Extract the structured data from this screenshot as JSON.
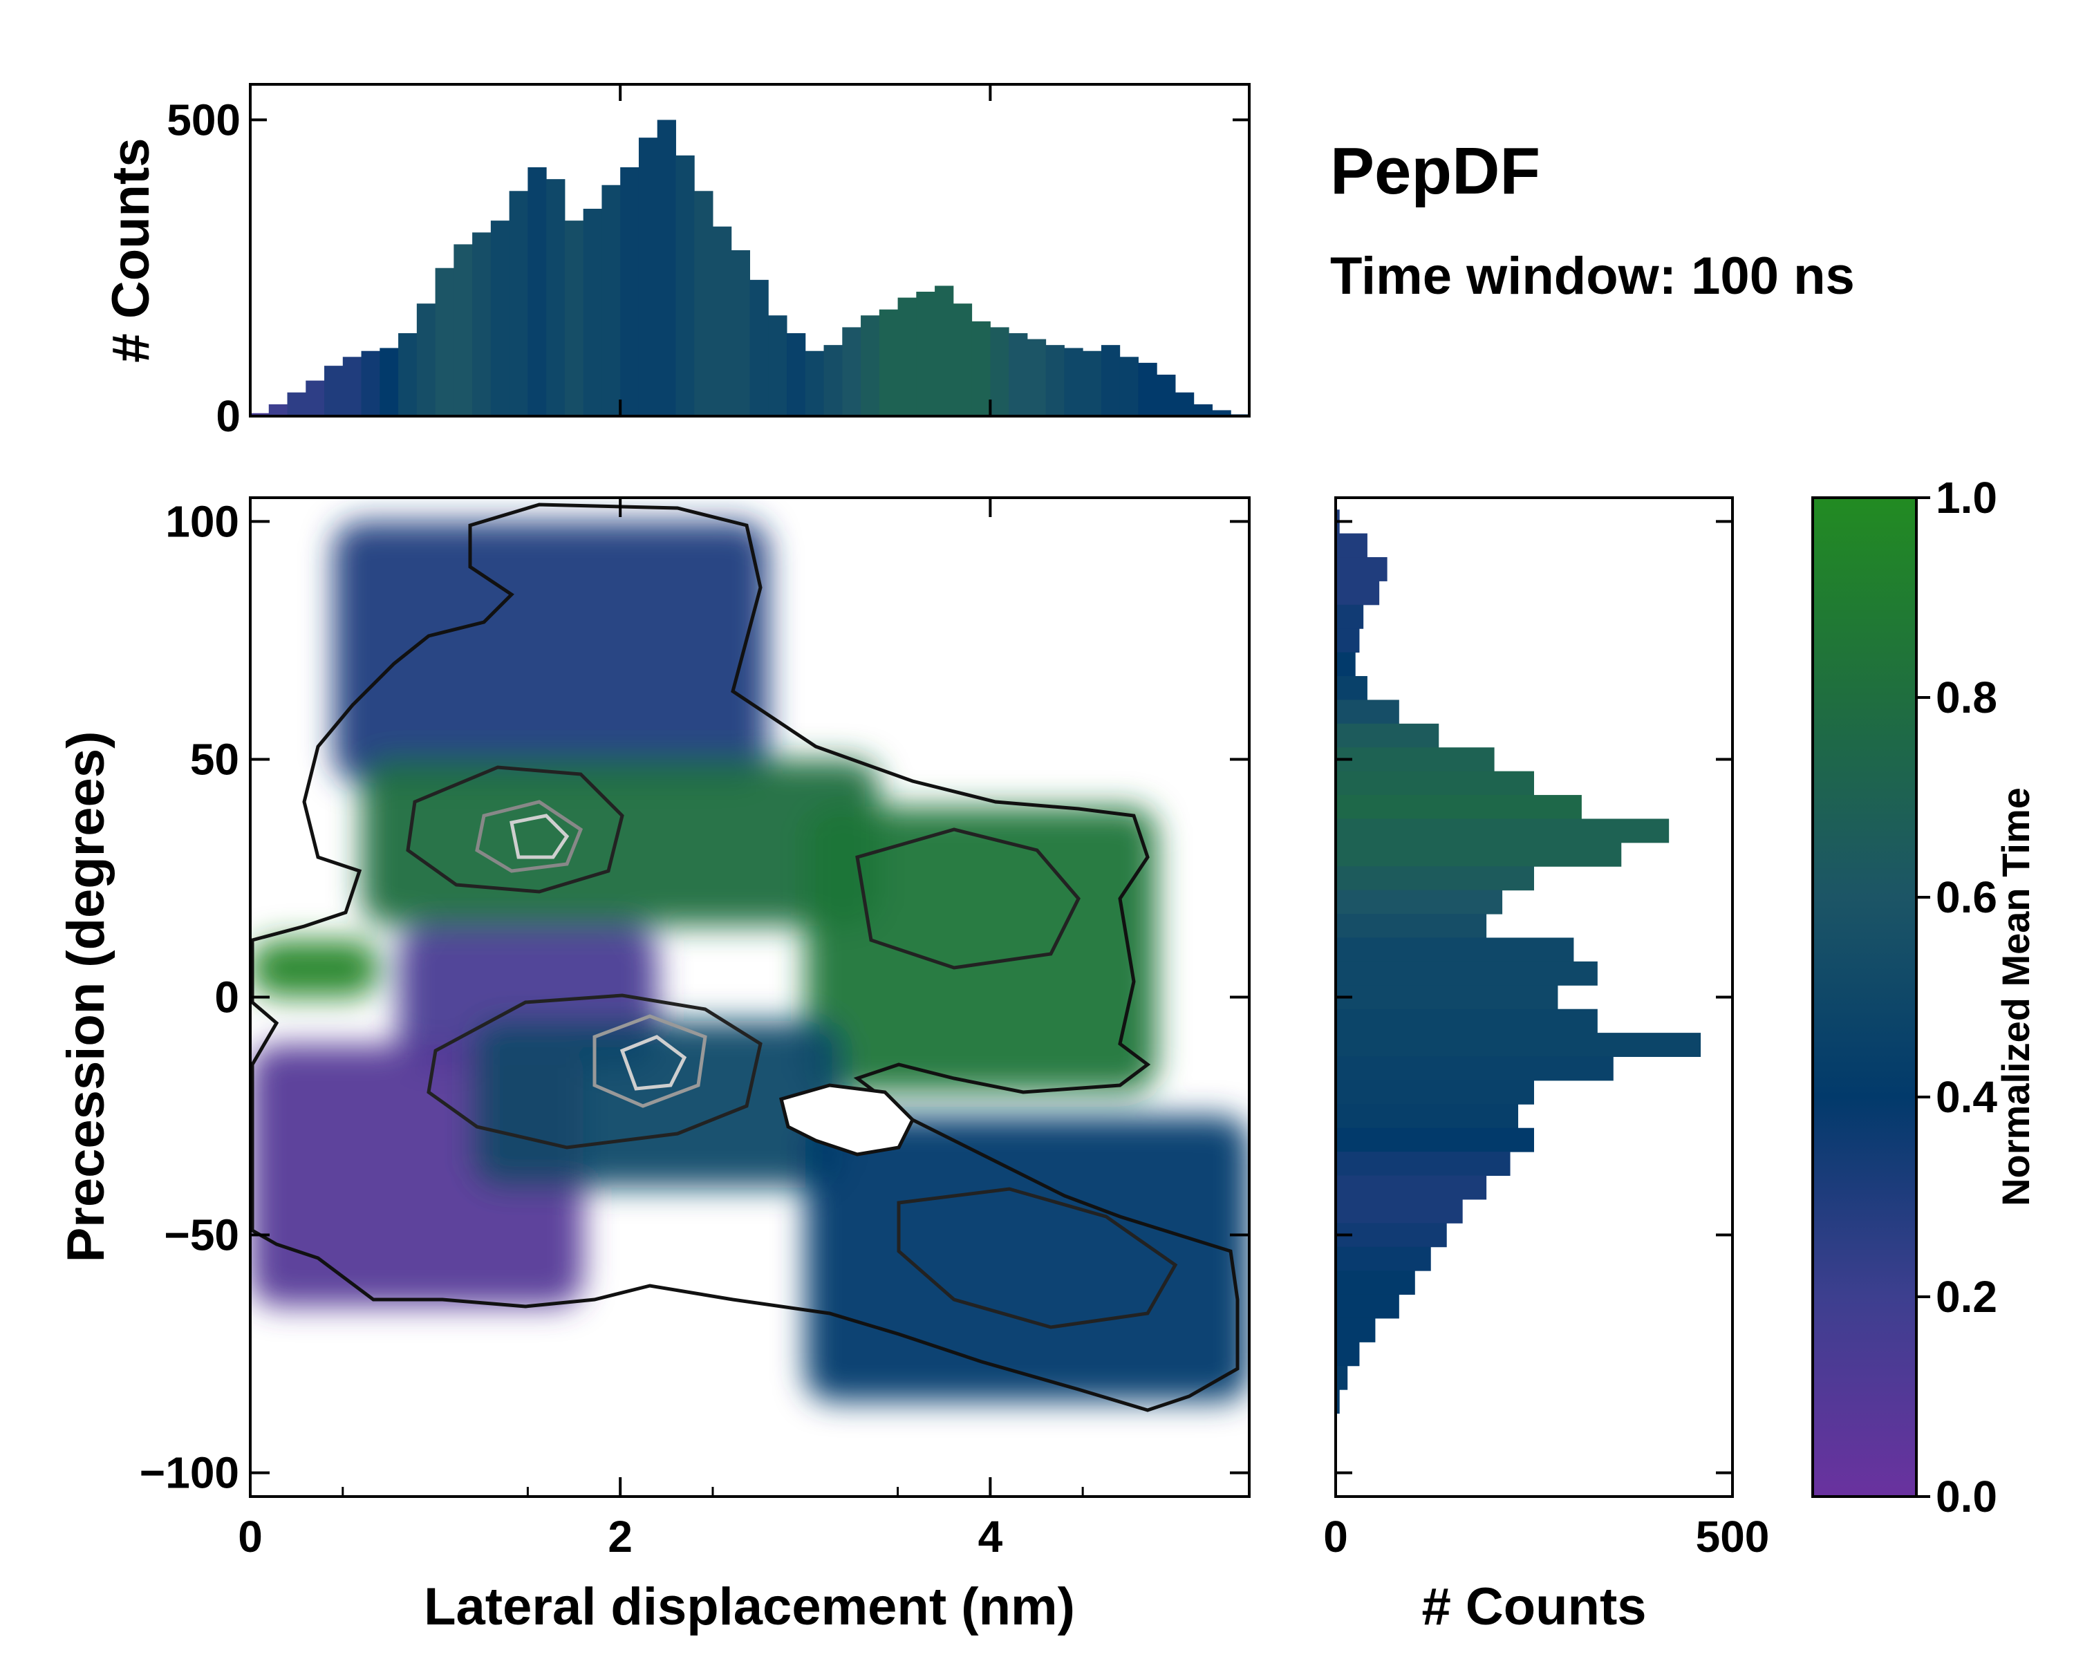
{
  "header": {
    "title": "PepDF",
    "subtitle": "Time window: 100 ns"
  },
  "chart_data": [
    {
      "type": "bar",
      "name": "top-marginal-histogram",
      "ylabel": "# Counts",
      "xlim": [
        0,
        5.4
      ],
      "ylim": [
        0,
        560
      ],
      "y_ticks": [
        0,
        500
      ],
      "y_tick_labels": [
        "0",
        "500"
      ],
      "x": [
        0.0,
        0.1,
        0.2,
        0.3,
        0.4,
        0.5,
        0.6,
        0.7,
        0.8,
        0.9,
        1.0,
        1.1,
        1.2,
        1.3,
        1.4,
        1.5,
        1.6,
        1.7,
        1.8,
        1.9,
        2.0,
        2.1,
        2.2,
        2.3,
        2.4,
        2.5,
        2.6,
        2.7,
        2.8,
        2.9,
        3.0,
        3.1,
        3.2,
        3.3,
        3.4,
        3.5,
        3.6,
        3.7,
        3.8,
        3.9,
        4.0,
        4.1,
        4.2,
        4.3,
        4.4,
        4.5,
        4.6,
        4.7,
        4.8,
        4.9,
        5.0,
        5.1,
        5.2,
        5.3
      ],
      "values": [
        5,
        20,
        40,
        60,
        85,
        100,
        110,
        115,
        140,
        190,
        250,
        290,
        310,
        330,
        380,
        420,
        400,
        330,
        350,
        390,
        420,
        470,
        500,
        440,
        380,
        320,
        280,
        230,
        170,
        140,
        110,
        120,
        150,
        170,
        180,
        200,
        210,
        220,
        190,
        160,
        150,
        140,
        130,
        120,
        115,
        110,
        120,
        100,
        90,
        70,
        40,
        20,
        10,
        3
      ],
      "color_values": [
        0.15,
        0.2,
        0.25,
        0.25,
        0.3,
        0.3,
        0.35,
        0.4,
        0.5,
        0.55,
        0.6,
        0.6,
        0.55,
        0.5,
        0.5,
        0.45,
        0.5,
        0.55,
        0.5,
        0.5,
        0.45,
        0.45,
        0.45,
        0.5,
        0.55,
        0.55,
        0.55,
        0.5,
        0.5,
        0.45,
        0.5,
        0.55,
        0.6,
        0.65,
        0.7,
        0.7,
        0.7,
        0.7,
        0.7,
        0.7,
        0.65,
        0.6,
        0.6,
        0.55,
        0.5,
        0.5,
        0.45,
        0.45,
        0.4,
        0.4,
        0.4,
        0.4,
        0.4,
        0.4
      ]
    },
    {
      "type": "heatmap",
      "name": "main-2d-histogram",
      "xlabel": "Lateral displacement (nm)",
      "ylabel": "Precession (degrees)",
      "xlim": [
        0,
        5.4
      ],
      "ylim": [
        -105,
        105
      ],
      "x_ticks": [
        0,
        2,
        4
      ],
      "x_tick_labels": [
        "0",
        "2",
        "4"
      ],
      "y_ticks": [
        100,
        50,
        0,
        -50,
        -100
      ],
      "y_tick_labels": [
        "100",
        "50",
        "0",
        "−50",
        "−100"
      ],
      "regions": [
        {
          "label": "upper-left",
          "x": [
            0.45,
            2.8
          ],
          "y": [
            45,
            100
          ],
          "value": 0.3
        },
        {
          "label": "upper-band",
          "x": [
            0.6,
            3.4
          ],
          "y": [
            15,
            50
          ],
          "value": 0.8
        },
        {
          "label": "right-band",
          "x": [
            3.0,
            4.9
          ],
          "y": [
            -20,
            40
          ],
          "value": 0.85
        },
        {
          "label": "left-edge",
          "x": [
            0.0,
            0.7
          ],
          "y": [
            0,
            12
          ],
          "value": 0.95
        },
        {
          "label": "center-low",
          "x": [
            0.8,
            2.2
          ],
          "y": [
            -15,
            15
          ],
          "value": 0.15
        },
        {
          "label": "lower-left",
          "x": [
            0.0,
            1.8
          ],
          "y": [
            -65,
            -10
          ],
          "value": 0.1
        },
        {
          "label": "center",
          "x": [
            1.2,
            3.2
          ],
          "y": [
            -40,
            -5
          ],
          "value": 0.5
        },
        {
          "label": "lower-right",
          "x": [
            3.0,
            5.4
          ],
          "y": [
            -85,
            -25
          ],
          "value": 0.4
        }
      ]
    },
    {
      "type": "bar",
      "orientation": "horizontal",
      "name": "right-marginal-histogram",
      "xlabel": "# Counts",
      "xlim": [
        0,
        500
      ],
      "x_ticks": [
        0,
        500
      ],
      "x_tick_labels": [
        "0",
        "500"
      ],
      "y": [
        100,
        95,
        90,
        85,
        80,
        75,
        70,
        65,
        60,
        55,
        50,
        45,
        40,
        35,
        30,
        25,
        20,
        15,
        10,
        5,
        0,
        -5,
        -10,
        -15,
        -20,
        -25,
        -30,
        -35,
        -40,
        -45,
        -50,
        -55,
        -60,
        -65,
        -70,
        -75,
        -80,
        -85
      ],
      "values": [
        5,
        40,
        65,
        55,
        35,
        30,
        25,
        40,
        80,
        130,
        200,
        250,
        310,
        420,
        360,
        250,
        210,
        190,
        300,
        330,
        280,
        330,
        460,
        350,
        250,
        230,
        250,
        220,
        190,
        160,
        140,
        120,
        100,
        80,
        50,
        30,
        15,
        5
      ],
      "color_values": [
        0.3,
        0.3,
        0.3,
        0.3,
        0.35,
        0.35,
        0.4,
        0.45,
        0.55,
        0.65,
        0.7,
        0.72,
        0.75,
        0.7,
        0.7,
        0.65,
        0.6,
        0.55,
        0.5,
        0.5,
        0.5,
        0.48,
        0.48,
        0.46,
        0.45,
        0.44,
        0.4,
        0.35,
        0.32,
        0.32,
        0.35,
        0.38,
        0.4,
        0.4,
        0.4,
        0.4,
        0.42,
        0.42
      ]
    },
    {
      "type": "colorbar",
      "name": "normalized-mean-time-colorbar",
      "label": "Normalized Mean Time",
      "range": [
        0.0,
        1.0
      ],
      "ticks": [
        0.0,
        0.2,
        0.4,
        0.6,
        0.8,
        1.0
      ],
      "tick_labels": [
        "0.0",
        "0.2",
        "0.4",
        "0.6",
        "0.8",
        "1.0"
      ],
      "colors": [
        "#6a329f",
        "#3d3f8f",
        "#023a6b",
        "#1c5566",
        "#1f6e3f",
        "#228b22"
      ]
    }
  ]
}
